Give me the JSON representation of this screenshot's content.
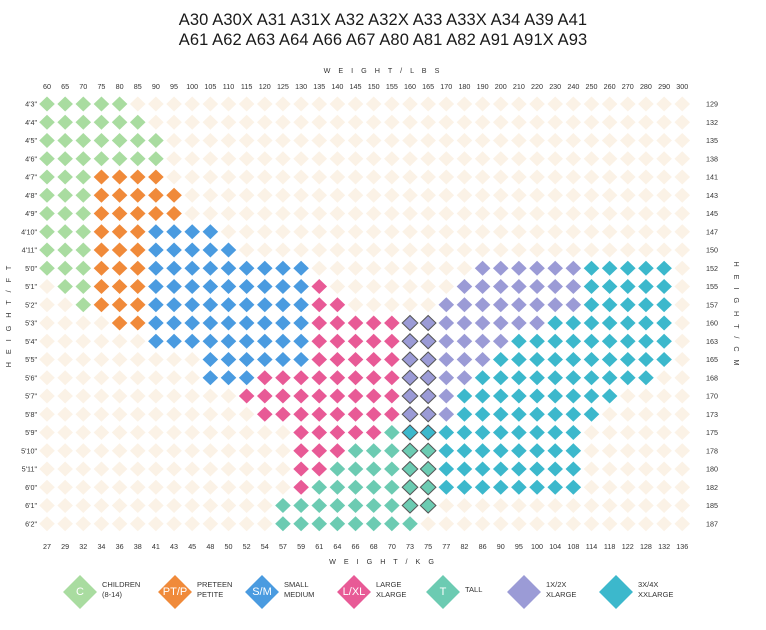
{
  "titles": {
    "line1": "A30 A30X A31 A31X A32 A32X A33 A33X A34 A39 A41",
    "line2": "A61 A62 A63 A64 A66 A67 A80 A81 A82 A91 A91X A93"
  },
  "colors": {
    "C": "#a9dca0",
    "PTP": "#f08a3a",
    "SM": "#4a9be0",
    "LXL": "#e85a96",
    "T": "#6ccbb2",
    "1X2X": "#9b9bd6",
    "3X4X": "#3cb8cc",
    "empty": "#fbf2e6",
    "outline": "#555555"
  },
  "chart_data": {
    "type": "heatmap",
    "top_axis_title": "W E I G H T / L B S",
    "bottom_axis_title": "W E I G H T / K G",
    "left_axis_title": "H E I G H T / F T",
    "right_axis_title": "H E I G H T / C M",
    "weights_lbs": [
      "60",
      "65",
      "70",
      "75",
      "80",
      "85",
      "90",
      "95",
      "100",
      "105",
      "110",
      "115",
      "120",
      "125",
      "130",
      "135",
      "140",
      "145",
      "150",
      "155",
      "160",
      "165",
      "170",
      "180",
      "190",
      "200",
      "210",
      "220",
      "230",
      "240",
      "250",
      "260",
      "270",
      "280",
      "290",
      "300"
    ],
    "weights_kg": [
      "27",
      "29",
      "32",
      "34",
      "36",
      "38",
      "41",
      "43",
      "45",
      "48",
      "50",
      "52",
      "54",
      "57",
      "59",
      "61",
      "64",
      "66",
      "68",
      "70",
      "73",
      "75",
      "77",
      "82",
      "86",
      "90",
      "95",
      "100",
      "104",
      "108",
      "114",
      "118",
      "122",
      "128",
      "132",
      "136"
    ],
    "heights_ft": [
      "4'3\"",
      "4'4\"",
      "4'5\"",
      "4'6\"",
      "4'7\"",
      "4'8\"",
      "4'9\"",
      "4'10\"",
      "4'11\"",
      "5'0\"",
      "5'1\"",
      "5'2\"",
      "5'3\"",
      "5'4\"",
      "5'5\"",
      "5'6\"",
      "5'7\"",
      "5'8\"",
      "5'9\"",
      "5'10\"",
      "5'11\"",
      "6'0\"",
      "6'1\"",
      "6'2\""
    ],
    "heights_cm": [
      "129",
      "132",
      "135",
      "138",
      "141",
      "143",
      "145",
      "147",
      "150",
      "152",
      "155",
      "157",
      "160",
      "163",
      "165",
      "168",
      "170",
      "173",
      "175",
      "178",
      "180",
      "182",
      "185",
      "187"
    ],
    "rows": [
      [
        [
          0,
          4,
          "C"
        ]
      ],
      [
        [
          0,
          5,
          "C"
        ]
      ],
      [
        [
          0,
          6,
          "C"
        ]
      ],
      [
        [
          0,
          6,
          "C"
        ]
      ],
      [
        [
          0,
          2,
          "C"
        ],
        [
          3,
          6,
          "PTP"
        ]
      ],
      [
        [
          0,
          2,
          "C"
        ],
        [
          3,
          7,
          "PTP"
        ]
      ],
      [
        [
          0,
          2,
          "C"
        ],
        [
          3,
          7,
          "PTP"
        ]
      ],
      [
        [
          0,
          2,
          "C"
        ],
        [
          3,
          5,
          "PTP"
        ],
        [
          6,
          9,
          "SM"
        ]
      ],
      [
        [
          0,
          2,
          "C"
        ],
        [
          3,
          5,
          "PTP"
        ],
        [
          6,
          10,
          "SM"
        ]
      ],
      [
        [
          0,
          2,
          "C"
        ],
        [
          3,
          5,
          "PTP"
        ],
        [
          6,
          14,
          "SM"
        ],
        [
          24,
          29,
          "1X2X"
        ],
        [
          30,
          34,
          "3X4X"
        ]
      ],
      [
        [
          1,
          2,
          "C"
        ],
        [
          3,
          5,
          "PTP"
        ],
        [
          6,
          14,
          "SM"
        ],
        [
          15,
          15,
          "LXL"
        ],
        [
          23,
          29,
          "1X2X"
        ],
        [
          30,
          34,
          "3X4X"
        ]
      ],
      [
        [
          2,
          2,
          "C"
        ],
        [
          3,
          5,
          "PTP"
        ],
        [
          6,
          14,
          "SM"
        ],
        [
          15,
          16,
          "LXL"
        ],
        [
          22,
          29,
          "1X2X"
        ],
        [
          30,
          34,
          "3X4X"
        ]
      ],
      [
        [
          4,
          5,
          "PTP"
        ],
        [
          6,
          14,
          "SM"
        ],
        [
          15,
          19,
          "LXL"
        ],
        [
          20,
          21,
          "1X2X",
          "o"
        ],
        [
          22,
          27,
          "1X2X"
        ],
        [
          28,
          34,
          "3X4X"
        ]
      ],
      [
        [
          6,
          14,
          "SM"
        ],
        [
          15,
          19,
          "LXL"
        ],
        [
          20,
          21,
          "1X2X",
          "o"
        ],
        [
          22,
          25,
          "1X2X"
        ],
        [
          26,
          34,
          "3X4X"
        ]
      ],
      [
        [
          9,
          14,
          "SM"
        ],
        [
          15,
          19,
          "LXL"
        ],
        [
          20,
          21,
          "1X2X",
          "o"
        ],
        [
          22,
          24,
          "1X2X"
        ],
        [
          25,
          34,
          "3X4X"
        ]
      ],
      [
        [
          9,
          11,
          "SM"
        ],
        [
          12,
          19,
          "LXL"
        ],
        [
          20,
          21,
          "1X2X",
          "o"
        ],
        [
          22,
          23,
          "1X2X"
        ],
        [
          24,
          33,
          "3X4X"
        ]
      ],
      [
        [
          11,
          19,
          "LXL"
        ],
        [
          20,
          21,
          "1X2X",
          "o"
        ],
        [
          22,
          22,
          "1X2X"
        ],
        [
          23,
          31,
          "3X4X"
        ]
      ],
      [
        [
          12,
          19,
          "LXL"
        ],
        [
          20,
          21,
          "1X2X",
          "o"
        ],
        [
          22,
          22,
          "1X2X"
        ],
        [
          23,
          30,
          "3X4X"
        ]
      ],
      [
        [
          14,
          18,
          "LXL"
        ],
        [
          19,
          19,
          "T"
        ],
        [
          20,
          21,
          "3X4X",
          "o"
        ],
        [
          22,
          29,
          "3X4X"
        ]
      ],
      [
        [
          14,
          16,
          "LXL"
        ],
        [
          17,
          19,
          "T"
        ],
        [
          20,
          21,
          "T",
          "o"
        ],
        [
          22,
          29,
          "3X4X"
        ]
      ],
      [
        [
          14,
          15,
          "LXL"
        ],
        [
          16,
          19,
          "T"
        ],
        [
          20,
          21,
          "T",
          "o"
        ],
        [
          22,
          29,
          "3X4X"
        ]
      ],
      [
        [
          14,
          14,
          "LXL"
        ],
        [
          15,
          19,
          "T"
        ],
        [
          20,
          21,
          "T",
          "o"
        ],
        [
          22,
          29,
          "3X4X"
        ]
      ],
      [
        [
          13,
          19,
          "T"
        ],
        [
          20,
          21,
          "T",
          "o"
        ]
      ],
      [
        [
          13,
          20,
          "T"
        ]
      ]
    ]
  },
  "legend": [
    {
      "key": "C",
      "code": "C",
      "line1": "CHILDREN",
      "line2": "(8-14)"
    },
    {
      "key": "PTP",
      "code": "PT/P",
      "line1": "PRETEEN",
      "line2": "PETITE"
    },
    {
      "key": "SM",
      "code": "S/M",
      "line1": "SMALL",
      "line2": "MEDIUM"
    },
    {
      "key": "LXL",
      "code": "L/XL",
      "line1": "LARGE",
      "line2": "XLARGE"
    },
    {
      "key": "T",
      "code": "T",
      "line1": "TALL",
      "line2": ""
    },
    {
      "key": "1X2X",
      "code": "",
      "line1": "1X/2X",
      "line2": "XLARGE"
    },
    {
      "key": "3X4X",
      "code": "",
      "line1": "3X/4X",
      "line2": "XXLARGE"
    }
  ]
}
